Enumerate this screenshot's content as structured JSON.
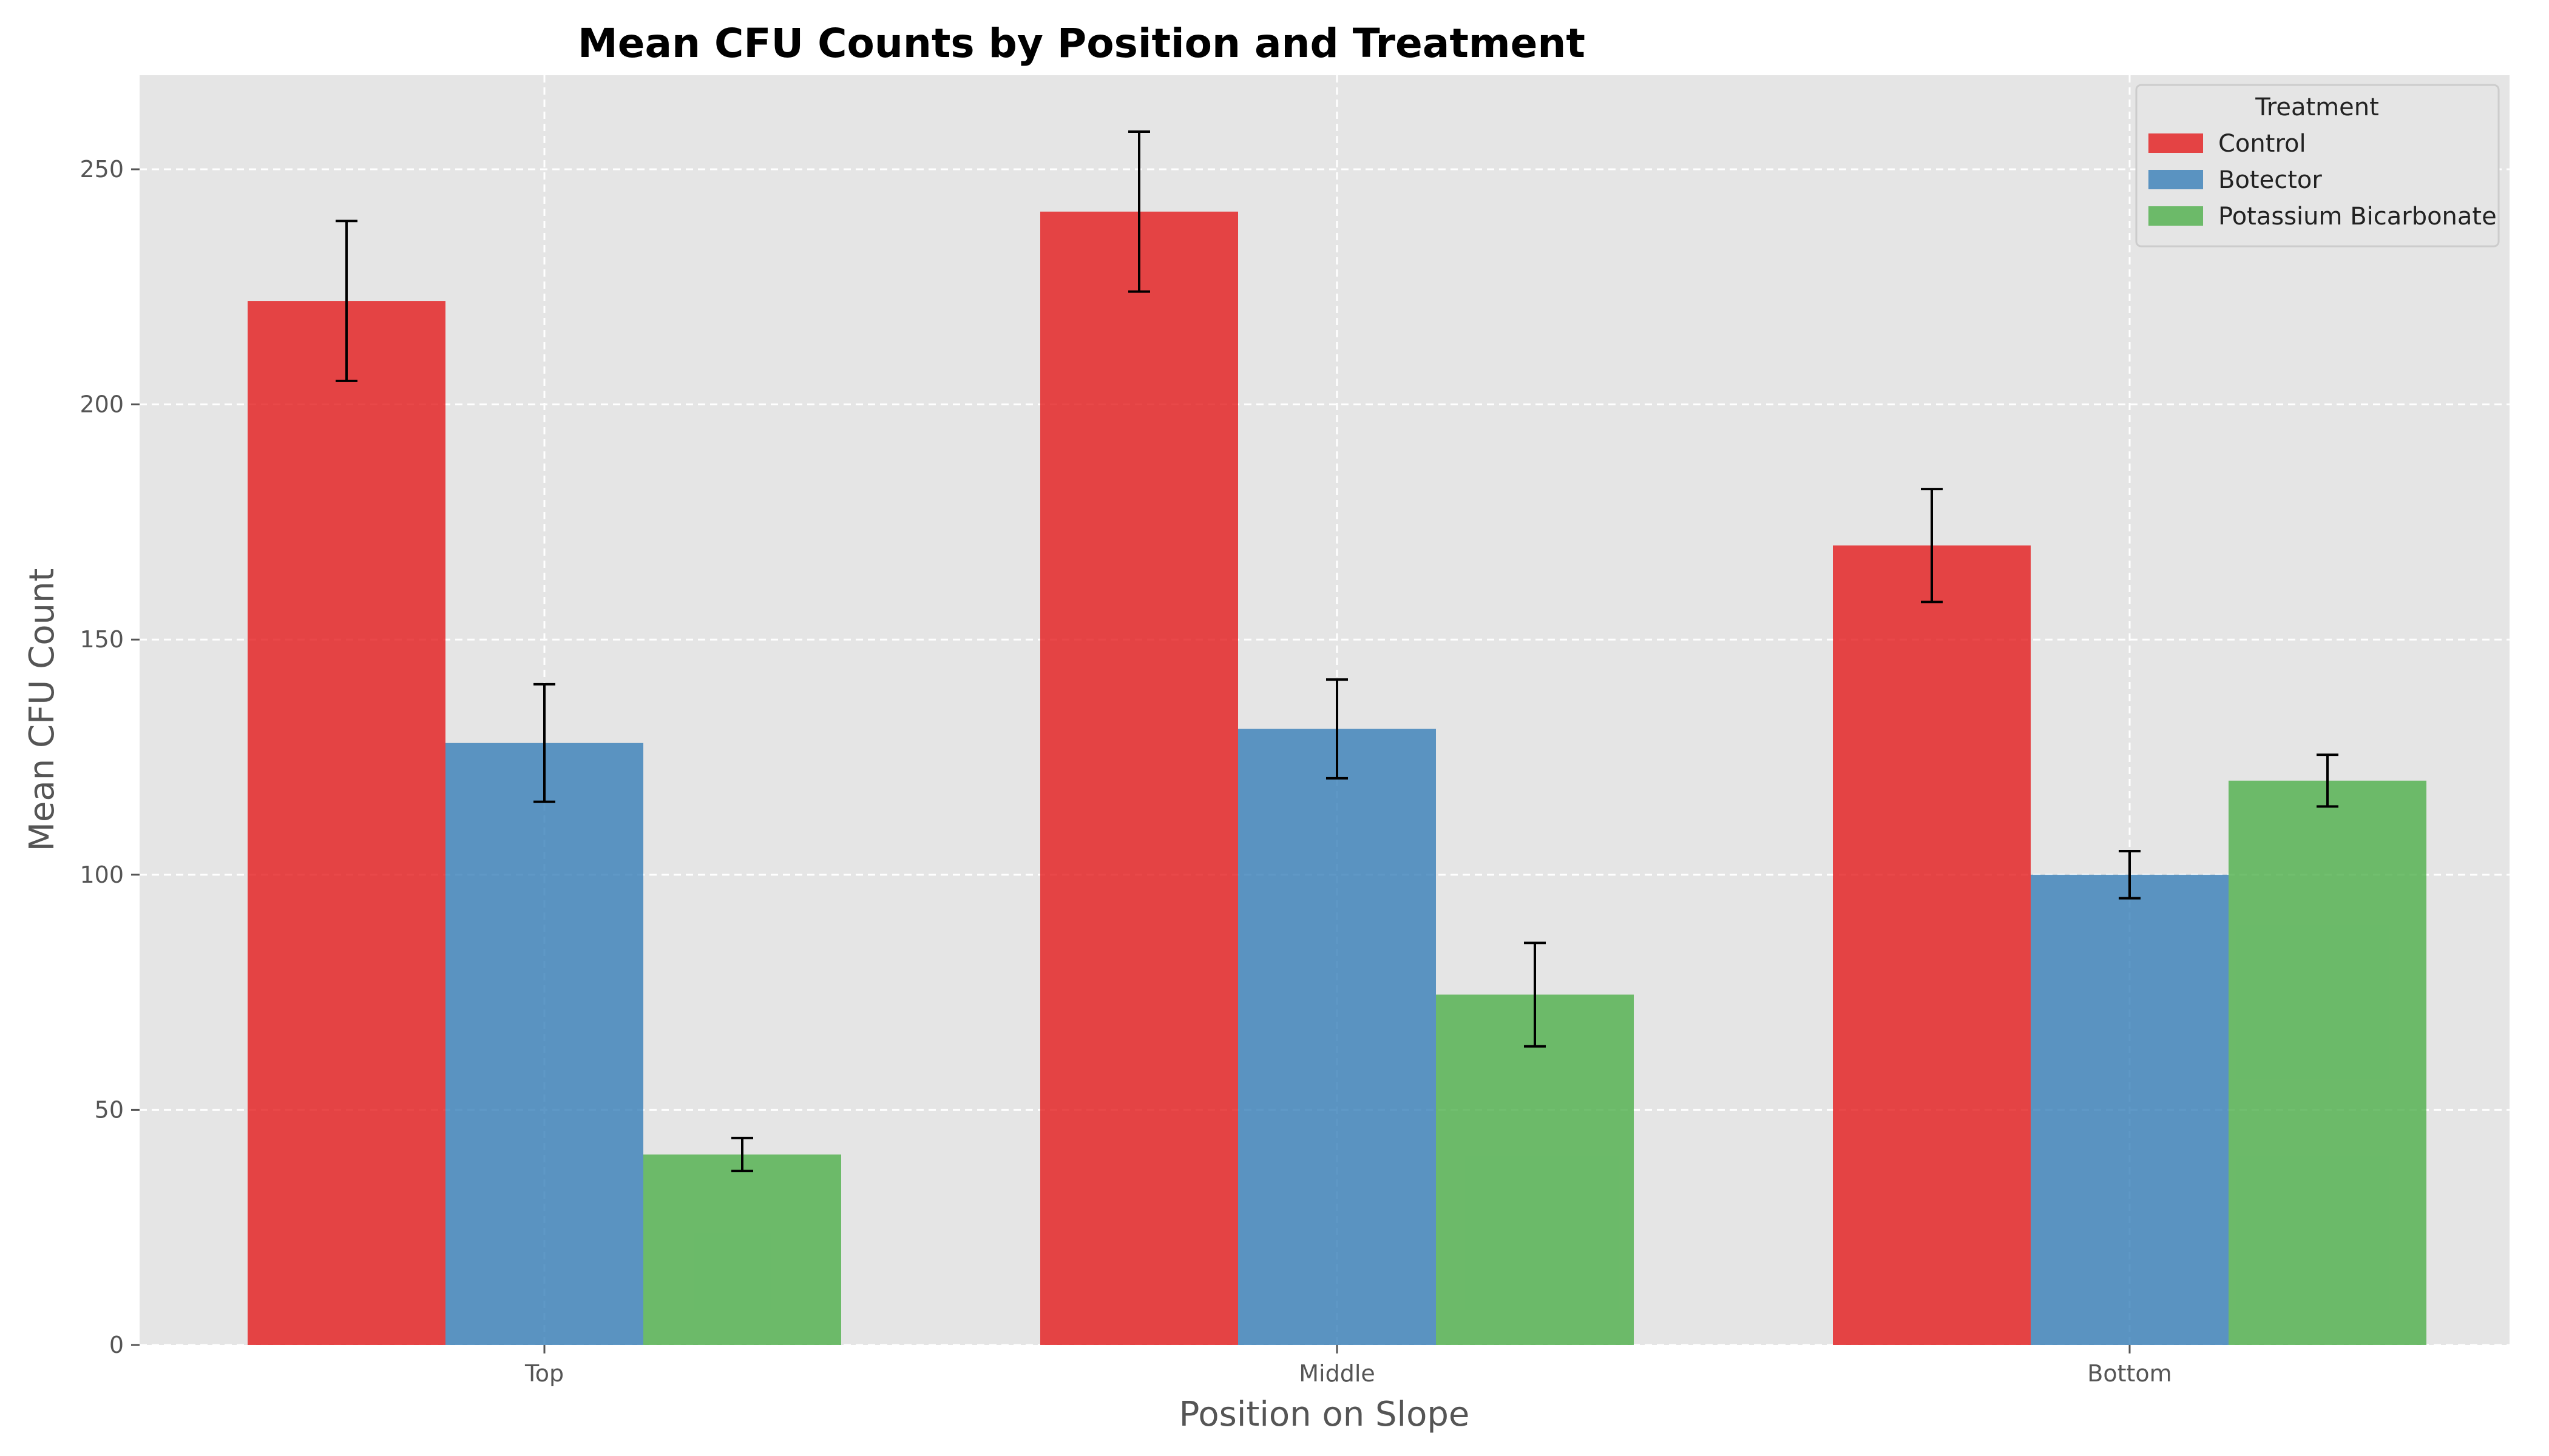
{
  "chart_data": {
    "type": "bar",
    "title": "Mean CFU Counts by Position and Treatment",
    "xlabel": "Position on Slope",
    "ylabel": "Mean CFU Count",
    "categories": [
      "Top",
      "Middle",
      "Bottom"
    ],
    "ylim": [
      0,
      270
    ],
    "yticks": [
      0,
      50,
      100,
      150,
      200,
      250
    ],
    "grid": true,
    "legend": {
      "title": "Treatment",
      "placement": "top-right"
    },
    "series": [
      {
        "name": "Control",
        "color": "#e41a1c",
        "values": [
          222,
          241,
          170
        ],
        "errors": [
          17,
          17,
          12
        ]
      },
      {
        "name": "Botector",
        "color": "#377eb8",
        "values": [
          128,
          131,
          100
        ],
        "errors": [
          12.5,
          10.5,
          5
        ]
      },
      {
        "name": "Potassium Bicarbonate",
        "color": "#4daf4a",
        "values": [
          40.5,
          74.5,
          120
        ],
        "errors": [
          3.5,
          11,
          5.5
        ]
      }
    ]
  }
}
